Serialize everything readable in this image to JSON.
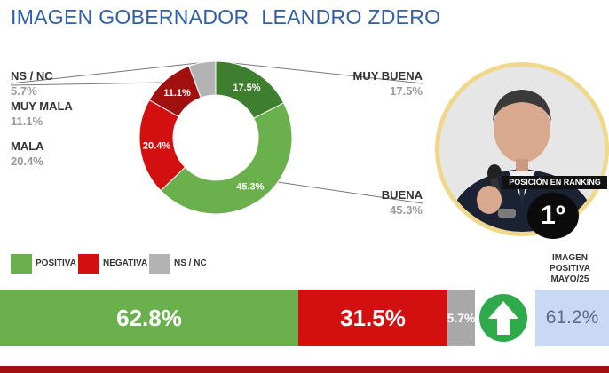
{
  "header": {
    "title_left": "IMAGEN GOBERNADOR",
    "title_right": "LEANDRO ZDERO"
  },
  "chart_data": [
    {
      "type": "pie",
      "categories": [
        "MUY BUENA",
        "BUENA",
        "MALA",
        "MUY MALA",
        "NS / NC"
      ],
      "values": [
        17.5,
        45.3,
        20.4,
        11.1,
        5.7
      ],
      "value_labels": [
        "17.5%",
        "45.3%",
        "20.4%",
        "11.1%",
        ""
      ],
      "side_values": [
        "17.5%",
        "45.3%",
        "20.4%",
        "11.1%",
        "5.7%"
      ],
      "colors": [
        "#3d7f2e",
        "#6ab04c",
        "#d40f0f",
        "#a10f0f",
        "#b3b3b3"
      ]
    },
    {
      "type": "bar",
      "orientation": "horizontal-stacked",
      "categories": [
        "POSITIVA",
        "NEGATIVA",
        "NS / NC"
      ],
      "values": [
        62.8,
        31.5,
        5.7
      ],
      "value_labels": [
        "62.8%",
        "31.5%",
        "5.7%"
      ],
      "colors": [
        "#6ab04c",
        "#d40f0f",
        "#a8a8a8"
      ]
    }
  ],
  "ranking": {
    "label": "POSICIÓN EN RANKING",
    "position": "1º"
  },
  "previous": {
    "label_line1": "IMAGEN",
    "label_line2": "POSITIVA",
    "label_line3": "MAYO/25",
    "value": "61.2%",
    "trend_icon": "up-arrow-icon"
  }
}
